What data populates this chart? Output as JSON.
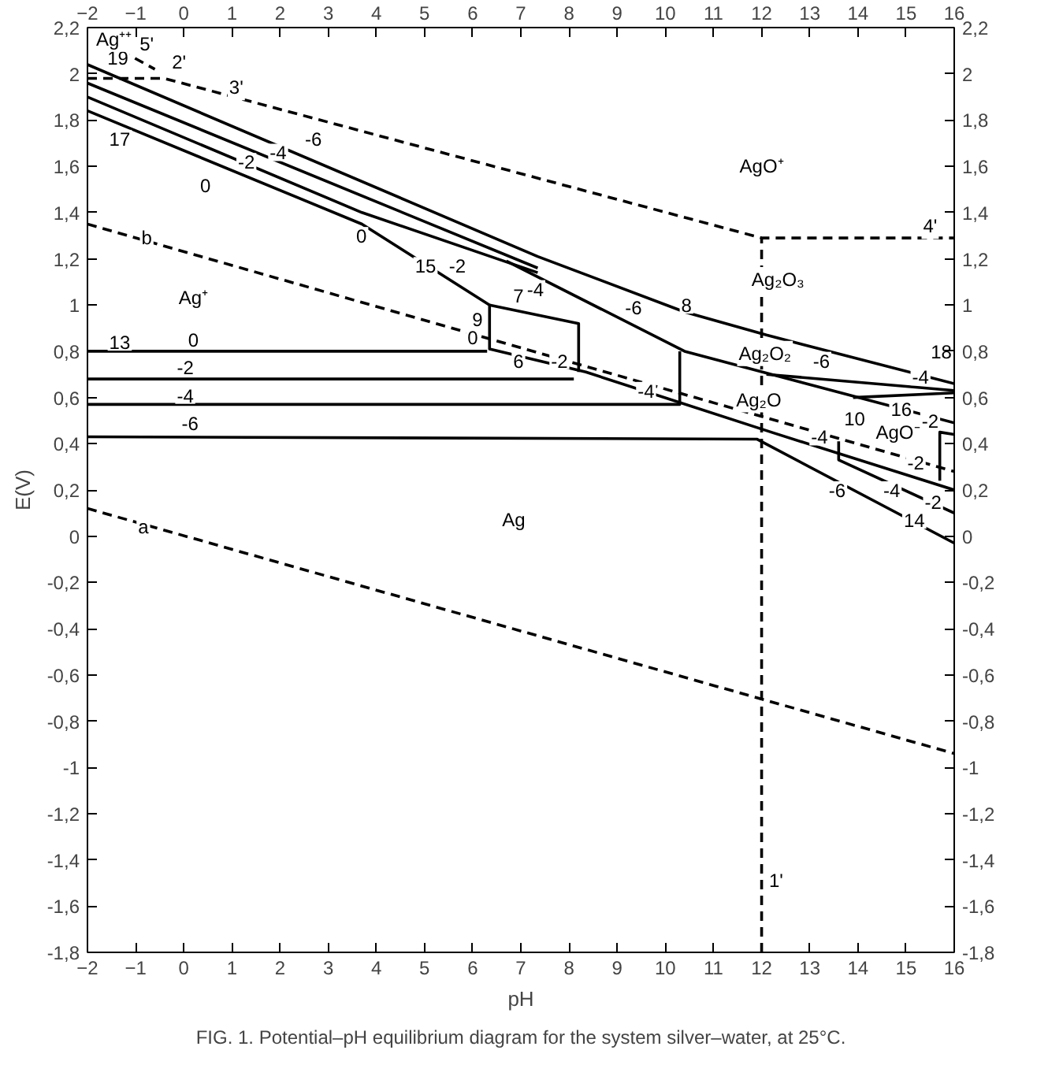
{
  "chart_data": {
    "type": "line",
    "xlabel": "pH",
    "ylabel": "E(V)",
    "xlim": [
      -2,
      16
    ],
    "ylim": [
      -1.8,
      2.2
    ],
    "xticks": [
      -2,
      -1,
      0,
      1,
      2,
      3,
      4,
      5,
      6,
      7,
      8,
      9,
      10,
      11,
      12,
      13,
      14,
      15,
      16
    ],
    "x2lim": [
      -2,
      16
    ],
    "x2ticks": [
      -2,
      -1,
      0,
      1,
      2,
      3,
      4,
      5,
      6,
      7,
      8,
      9,
      10,
      11,
      12,
      13,
      14,
      15,
      16
    ],
    "yticks": [
      {
        "value": -1.8,
        "label": "-1,8"
      },
      {
        "value": -1.6,
        "label": "-1,6"
      },
      {
        "value": -1.4,
        "label": "-1,4"
      },
      {
        "value": -1.2,
        "label": "-1,2"
      },
      {
        "value": -1,
        "label": "-1"
      },
      {
        "value": -0.8,
        "label": "-0,8"
      },
      {
        "value": -0.6,
        "label": "-0,6"
      },
      {
        "value": -0.4,
        "label": "-0,4"
      },
      {
        "value": -0.2,
        "label": "-0,2"
      },
      {
        "value": 0,
        "label": "0"
      },
      {
        "value": 0.2,
        "label": "0,2"
      },
      {
        "value": 0.4,
        "label": "0,4"
      },
      {
        "value": 0.6,
        "label": "0,6"
      },
      {
        "value": 0.8,
        "label": "0,8"
      },
      {
        "value": 1,
        "label": "1"
      },
      {
        "value": 1.2,
        "label": "1,2"
      },
      {
        "value": 1.4,
        "label": "1,4"
      },
      {
        "value": 1.6,
        "label": "1,6"
      },
      {
        "value": 1.8,
        "label": "1,8"
      },
      {
        "value": 2,
        "label": "2"
      },
      {
        "value": 2.2,
        "label": "2,2"
      }
    ],
    "y2lim": [
      -1.8,
      2.2
    ],
    "y2ticks": [
      {
        "value": -1.8,
        "label": "-1,8"
      },
      {
        "value": -1.6,
        "label": "-1,6"
      },
      {
        "value": -1.4,
        "label": "-1,4"
      },
      {
        "value": -1.2,
        "label": "-1,2"
      },
      {
        "value": -1,
        "label": "-1"
      },
      {
        "value": -0.8,
        "label": "-0,8"
      },
      {
        "value": -0.6,
        "label": "-0,6"
      },
      {
        "value": -0.4,
        "label": "-0,4"
      },
      {
        "value": -0.2,
        "label": "-0,2"
      },
      {
        "value": 0,
        "label": "0"
      },
      {
        "value": 0.2,
        "label": "0,2"
      },
      {
        "value": 0.4,
        "label": "0,4"
      },
      {
        "value": 0.6,
        "label": "0,6"
      },
      {
        "value": 0.8,
        "label": "0,8"
      },
      {
        "value": 1,
        "label": "1"
      },
      {
        "value": 1.2,
        "label": "1,2"
      },
      {
        "value": 1.4,
        "label": "1,4"
      },
      {
        "value": 1.6,
        "label": "1,6"
      },
      {
        "value": 1.8,
        "label": "1,8"
      },
      {
        "value": 2,
        "label": "2"
      },
      {
        "value": 2.2,
        "label": "2,2"
      }
    ],
    "grid": false,
    "series": [
      {
        "color": "#000000",
        "line_style": "dashed",
        "x": [
          -2,
          16
        ],
        "values": [
          0.12,
          -0.94
        ]
      },
      {
        "color": "#000000",
        "line_style": "dashed",
        "x": [
          -2,
          16
        ],
        "values": [
          1.35,
          0.28
        ]
      },
      {
        "color": "#000000",
        "line_style": "dashed",
        "x": [
          -2,
          -0.4,
          12,
          16
        ],
        "values": [
          1.98,
          1.98,
          1.29,
          1.29
        ]
      },
      {
        "color": "#000000",
        "line_style": "dashed",
        "x": [
          -1.3,
          -0.6
        ],
        "values": [
          2.1,
          2.02
        ]
      },
      {
        "color": "#000000",
        "line_style": "dashed",
        "x": [
          12,
          12
        ],
        "values": [
          -1.8,
          1.29
        ]
      },
      {
        "color": "#000000",
        "line_style": "solid",
        "x": [
          -2,
          7.35,
          10.4,
          12.1,
          16
        ],
        "values": [
          2.04,
          1.21,
          0.97,
          0.87,
          0.66
        ]
      },
      {
        "color": "#000000",
        "line_style": "solid",
        "x": [
          -2,
          7.35
        ],
        "values": [
          1.96,
          1.16
        ]
      },
      {
        "color": "#000000",
        "line_style": "solid",
        "x": [
          -2,
          3.7,
          7.35
        ],
        "values": [
          1.9,
          1.4,
          1.14
        ]
      },
      {
        "color": "#000000",
        "line_style": "solid",
        "x": [
          -2,
          3.7,
          6.35,
          6.35,
          8.35,
          12.2,
          16
        ],
        "values": [
          1.84,
          1.35,
          1.0,
          0.81,
          0.71,
          0.45,
          0.2
        ]
      },
      {
        "color": "#000000",
        "line_style": "solid",
        "x": [
          6.35,
          8.2,
          8.2
        ],
        "values": [
          1.0,
          0.92,
          0.71
        ]
      },
      {
        "color": "#000000",
        "line_style": "solid",
        "x": [
          6.7,
          10.4,
          16
        ],
        "values": [
          1.19,
          0.8,
          0.49
        ]
      },
      {
        "color": "#000000",
        "line_style": "solid",
        "x": [
          12.1,
          16
        ],
        "values": [
          0.7,
          0.63
        ]
      },
      {
        "color": "#000000",
        "line_style": "solid",
        "x": [
          13.9,
          16
        ],
        "values": [
          0.6,
          0.62
        ]
      },
      {
        "color": "#000000",
        "line_style": "solid",
        "x": [
          -2,
          6.3
        ],
        "values": [
          0.8,
          0.8
        ]
      },
      {
        "color": "#000000",
        "line_style": "solid",
        "x": [
          -2,
          8.1
        ],
        "values": [
          0.68,
          0.68
        ]
      },
      {
        "color": "#000000",
        "line_style": "solid",
        "x": [
          -2,
          10.3,
          10.3
        ],
        "values": [
          0.57,
          0.57,
          0.8
        ]
      },
      {
        "color": "#000000",
        "line_style": "solid",
        "x": [
          -2,
          11.9,
          16
        ],
        "values": [
          0.43,
          0.42,
          -0.03
        ]
      },
      {
        "color": "#000000",
        "line_style": "solid",
        "x": [
          13.6,
          13.6,
          16
        ],
        "values": [
          0.41,
          0.33,
          0.1
        ]
      },
      {
        "color": "#000000",
        "line_style": "solid",
        "x": [
          15.7,
          15.7,
          16
        ],
        "values": [
          0.24,
          0.45,
          0.44
        ]
      }
    ],
    "annotations": [
      "19",
      "5'",
      "2'",
      "3'",
      "17",
      "b",
      "15",
      "7",
      "9",
      "6",
      "13",
      "8",
      "4'",
      "18",
      "16",
      "10",
      "14",
      "a",
      "1'",
      "Ag⁺⁺",
      "Ag⁺",
      "AgO⁺",
      "Ag₂O₃",
      "Ag₂O₂",
      "Ag₂O",
      "AgO⁻",
      "Ag",
      "0",
      "-2",
      "-4",
      "-6",
      "0",
      "-2",
      "0",
      "0",
      "-2",
      "-4",
      "-6",
      "-4",
      "-6",
      "-2",
      "-4",
      "-6",
      "-4",
      "-2",
      "-4",
      "-2",
      "-6",
      "-4",
      "-2",
      "FIG. 1. Potential–pH equilibrium diagram for the system silver–water, at 25°C."
    ]
  }
}
